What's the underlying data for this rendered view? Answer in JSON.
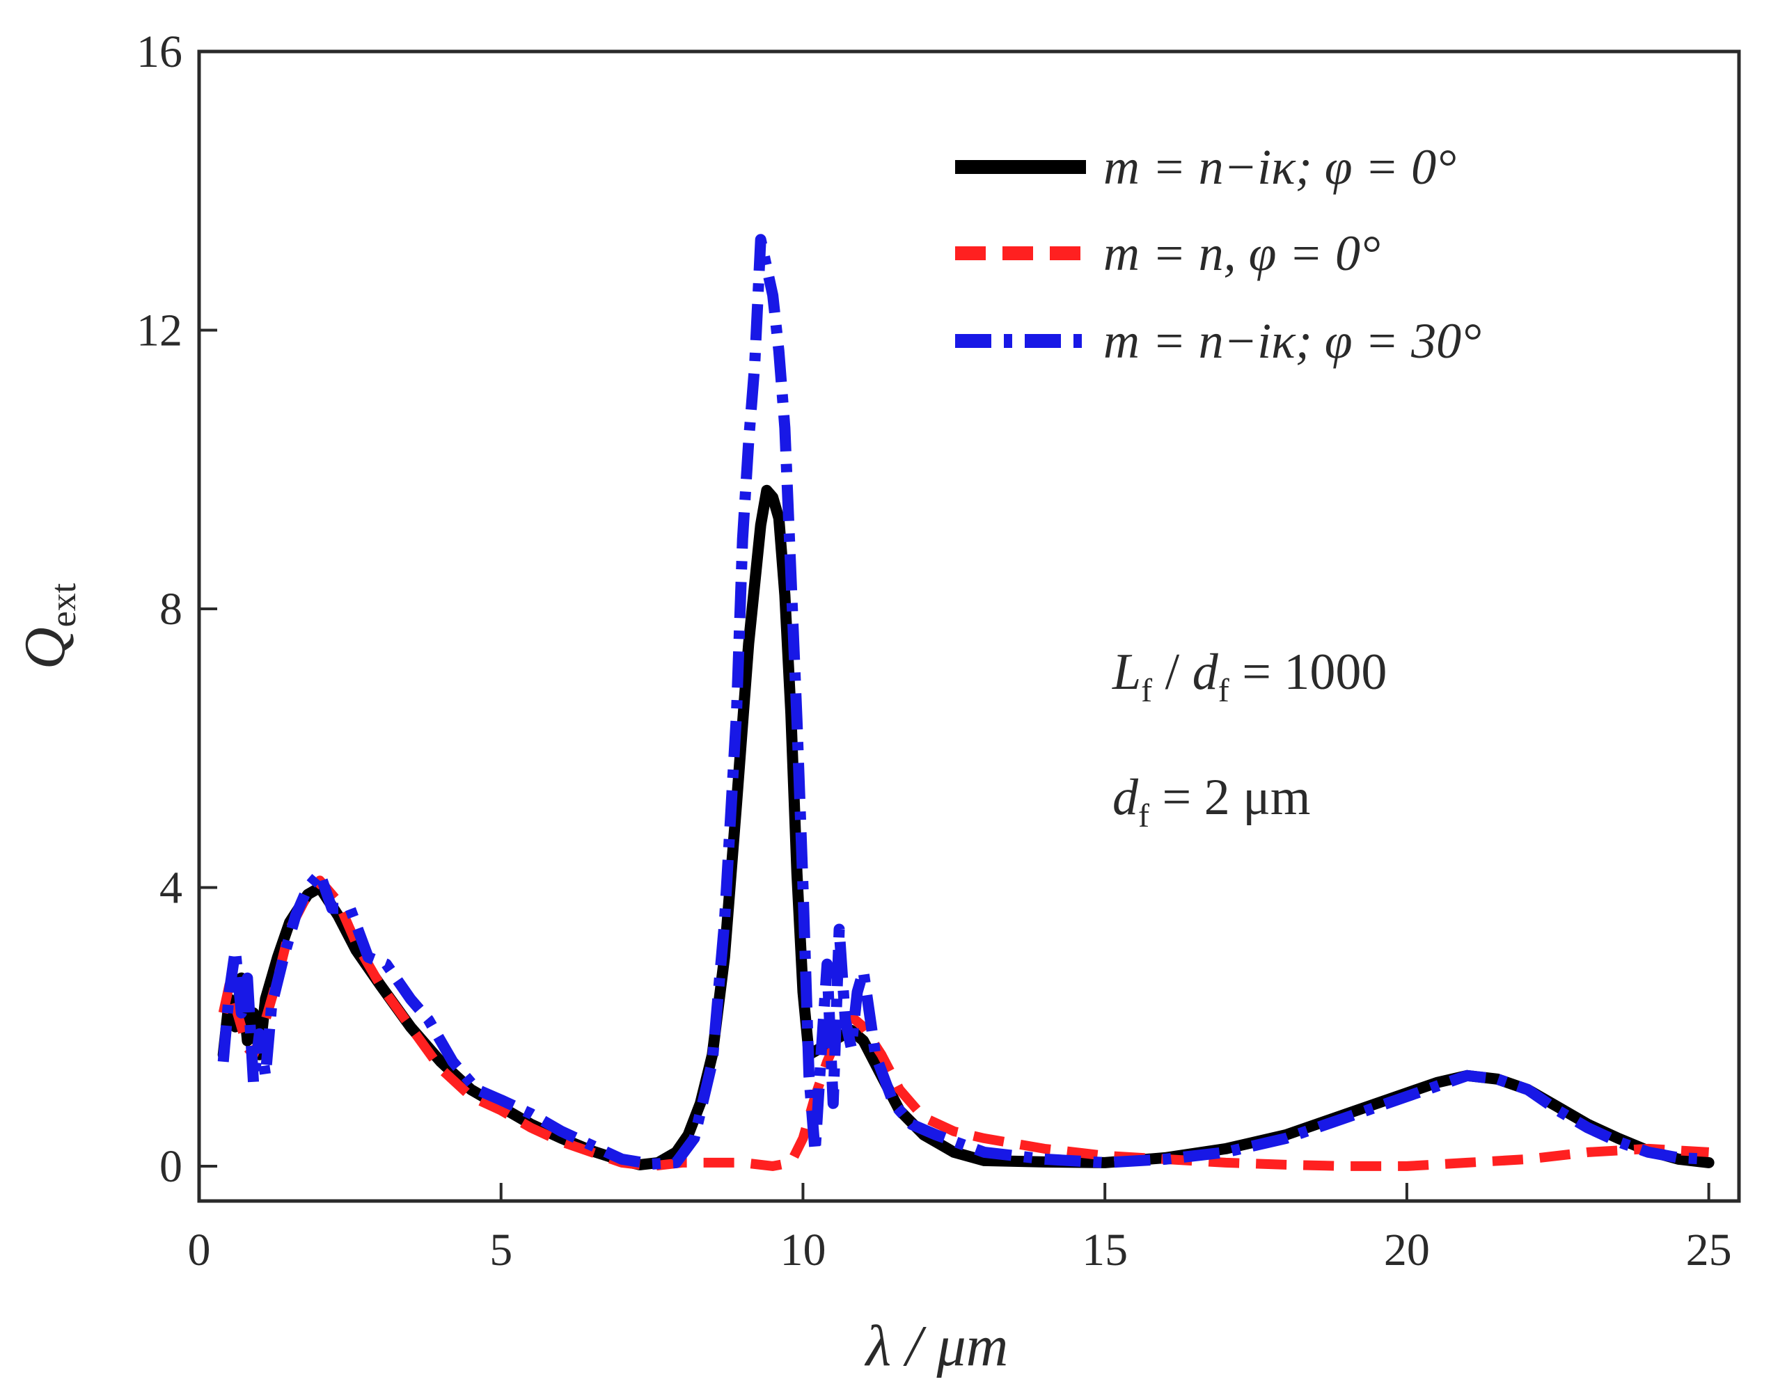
{
  "chart_data": {
    "type": "line",
    "title": "",
    "xlabel": "λ / μm",
    "ylabel": "Q_ext",
    "ylabel_main": "Q",
    "ylabel_sub": "ext",
    "xlim": [
      0,
      25.5
    ],
    "ylim": [
      -0.5,
      16
    ],
    "xticks": [
      0,
      5,
      10,
      15,
      20,
      25
    ],
    "yticks": [
      0,
      4,
      8,
      12,
      16
    ],
    "grid": false,
    "legend_position": "top-right",
    "series": [
      {
        "name": "m = n−iκ; φ = 0°",
        "legend_label": "m = n−iκ; φ = 0°",
        "color": "#000000",
        "style": "solid",
        "x": [
          0.4,
          0.5,
          0.6,
          0.7,
          0.8,
          0.9,
          1.0,
          1.1,
          1.3,
          1.5,
          1.8,
          2.0,
          2.3,
          2.6,
          3.0,
          3.5,
          4.0,
          4.5,
          5.0,
          5.5,
          6.0,
          6.5,
          7.0,
          7.3,
          7.6,
          7.9,
          8.1,
          8.3,
          8.5,
          8.7,
          8.9,
          9.1,
          9.3,
          9.4,
          9.5,
          9.6,
          9.7,
          9.8,
          9.9,
          10.0,
          10.1,
          10.3,
          10.5,
          10.8,
          11.0,
          11.3,
          11.6,
          12.0,
          12.5,
          13.0,
          14.0,
          15.0,
          16.0,
          17.0,
          18.0,
          19.0,
          20.0,
          20.5,
          21.0,
          21.5,
          22.0,
          22.5,
          23.0,
          23.5,
          24.0,
          24.5,
          25.0
        ],
        "y": [
          1.6,
          2.4,
          2.0,
          2.7,
          1.8,
          2.2,
          1.6,
          2.4,
          3.0,
          3.5,
          3.9,
          4.0,
          3.6,
          3.1,
          2.6,
          2.0,
          1.5,
          1.1,
          0.85,
          0.6,
          0.4,
          0.22,
          0.08,
          0.02,
          0.05,
          0.2,
          0.45,
          0.9,
          1.6,
          3.0,
          5.2,
          7.5,
          9.2,
          9.7,
          9.6,
          9.3,
          8.2,
          6.5,
          4.2,
          2.5,
          1.6,
          1.7,
          1.8,
          1.95,
          1.8,
          1.3,
          0.8,
          0.45,
          0.2,
          0.08,
          0.06,
          0.05,
          0.12,
          0.25,
          0.45,
          0.75,
          1.05,
          1.2,
          1.3,
          1.25,
          1.1,
          0.85,
          0.6,
          0.4,
          0.22,
          0.1,
          0.05
        ]
      },
      {
        "name": "m = n, φ = 0°",
        "legend_label": "m = n, φ = 0°",
        "color": "#ff2020",
        "style": "dashed",
        "x": [
          0.4,
          0.5,
          0.6,
          0.7,
          0.8,
          0.9,
          1.0,
          1.1,
          1.3,
          1.5,
          1.8,
          2.0,
          2.3,
          2.6,
          3.0,
          3.5,
          4.0,
          4.5,
          5.0,
          5.5,
          6.0,
          6.5,
          7.0,
          7.5,
          8.0,
          8.5,
          9.0,
          9.5,
          9.8,
          10.0,
          10.2,
          10.4,
          10.6,
          10.8,
          11.0,
          11.3,
          11.6,
          12.0,
          12.5,
          13.0,
          14.0,
          15.0,
          16.0,
          17.0,
          18.0,
          19.0,
          20.0,
          21.0,
          22.0,
          23.0,
          24.0,
          25.0
        ],
        "y": [
          2.2,
          2.6,
          2.3,
          2.0,
          1.7,
          1.6,
          1.8,
          2.1,
          2.7,
          3.4,
          3.9,
          4.1,
          3.8,
          3.2,
          2.6,
          2.0,
          1.4,
          1.0,
          0.8,
          0.55,
          0.35,
          0.2,
          0.05,
          0.0,
          0.05,
          0.05,
          0.05,
          0.0,
          0.05,
          0.4,
          1.0,
          1.5,
          1.9,
          2.15,
          2.0,
          1.6,
          1.1,
          0.7,
          0.5,
          0.4,
          0.25,
          0.15,
          0.1,
          0.05,
          0.02,
          0.0,
          0.0,
          0.05,
          0.1,
          0.2,
          0.25,
          0.2
        ]
      },
      {
        "name": "m = n−iκ; φ = 30°",
        "legend_label": "m = n−iκ; φ = 30°",
        "color": "#1818e6",
        "style": "dashdot",
        "x": [
          0.4,
          0.5,
          0.6,
          0.7,
          0.8,
          0.9,
          1.0,
          1.1,
          1.2,
          1.4,
          1.6,
          1.8,
          2.0,
          2.2,
          2.5,
          2.8,
          3.1,
          3.5,
          3.8,
          4.2,
          4.6,
          5.0,
          5.5,
          6.0,
          6.5,
          7.0,
          7.5,
          7.9,
          8.2,
          8.5,
          8.7,
          8.9,
          9.0,
          9.1,
          9.2,
          9.3,
          9.4,
          9.5,
          9.6,
          9.7,
          9.8,
          9.9,
          10.0,
          10.1,
          10.2,
          10.3,
          10.4,
          10.5,
          10.6,
          10.7,
          10.8,
          10.9,
          11.0,
          11.2,
          11.5,
          11.8,
          12.2,
          13.0,
          14.0,
          15.0,
          16.0,
          17.0,
          18.0,
          19.0,
          20.0,
          20.5,
          21.0,
          21.5,
          22.0,
          22.5,
          23.0,
          23.5,
          24.0,
          24.5,
          25.0
        ],
        "y": [
          1.5,
          2.5,
          3.1,
          2.2,
          2.7,
          1.2,
          1.9,
          1.3,
          2.3,
          3.0,
          3.6,
          4.0,
          4.2,
          3.7,
          3.7,
          3.0,
          2.9,
          2.4,
          2.1,
          1.5,
          1.1,
          0.95,
          0.75,
          0.5,
          0.3,
          0.1,
          0.03,
          0.05,
          0.4,
          1.5,
          3.5,
          6.5,
          9.0,
          10.4,
          11.5,
          13.3,
          12.9,
          12.5,
          11.7,
          10.6,
          8.5,
          6.4,
          4.0,
          1.3,
          0.2,
          1.6,
          2.9,
          0.9,
          3.4,
          2.1,
          1.7,
          2.5,
          2.8,
          1.6,
          0.9,
          0.6,
          0.45,
          0.2,
          0.1,
          0.05,
          0.1,
          0.2,
          0.4,
          0.7,
          1.0,
          1.15,
          1.3,
          1.25,
          1.1,
          0.8,
          0.55,
          0.35,
          0.2,
          0.12,
          0.1
        ]
      }
    ],
    "annotations": [
      {
        "text": "L_f / d_f = 1000",
        "parts": {
          "main1": "L",
          "sub1": "f",
          "sep": " / ",
          "main2": "d",
          "sub2": "f",
          "rest": " = 1000"
        }
      },
      {
        "text": "d_f = 2 μm",
        "parts": {
          "main": "d",
          "sub": "f",
          "rest": " = 2 μm"
        }
      }
    ]
  }
}
